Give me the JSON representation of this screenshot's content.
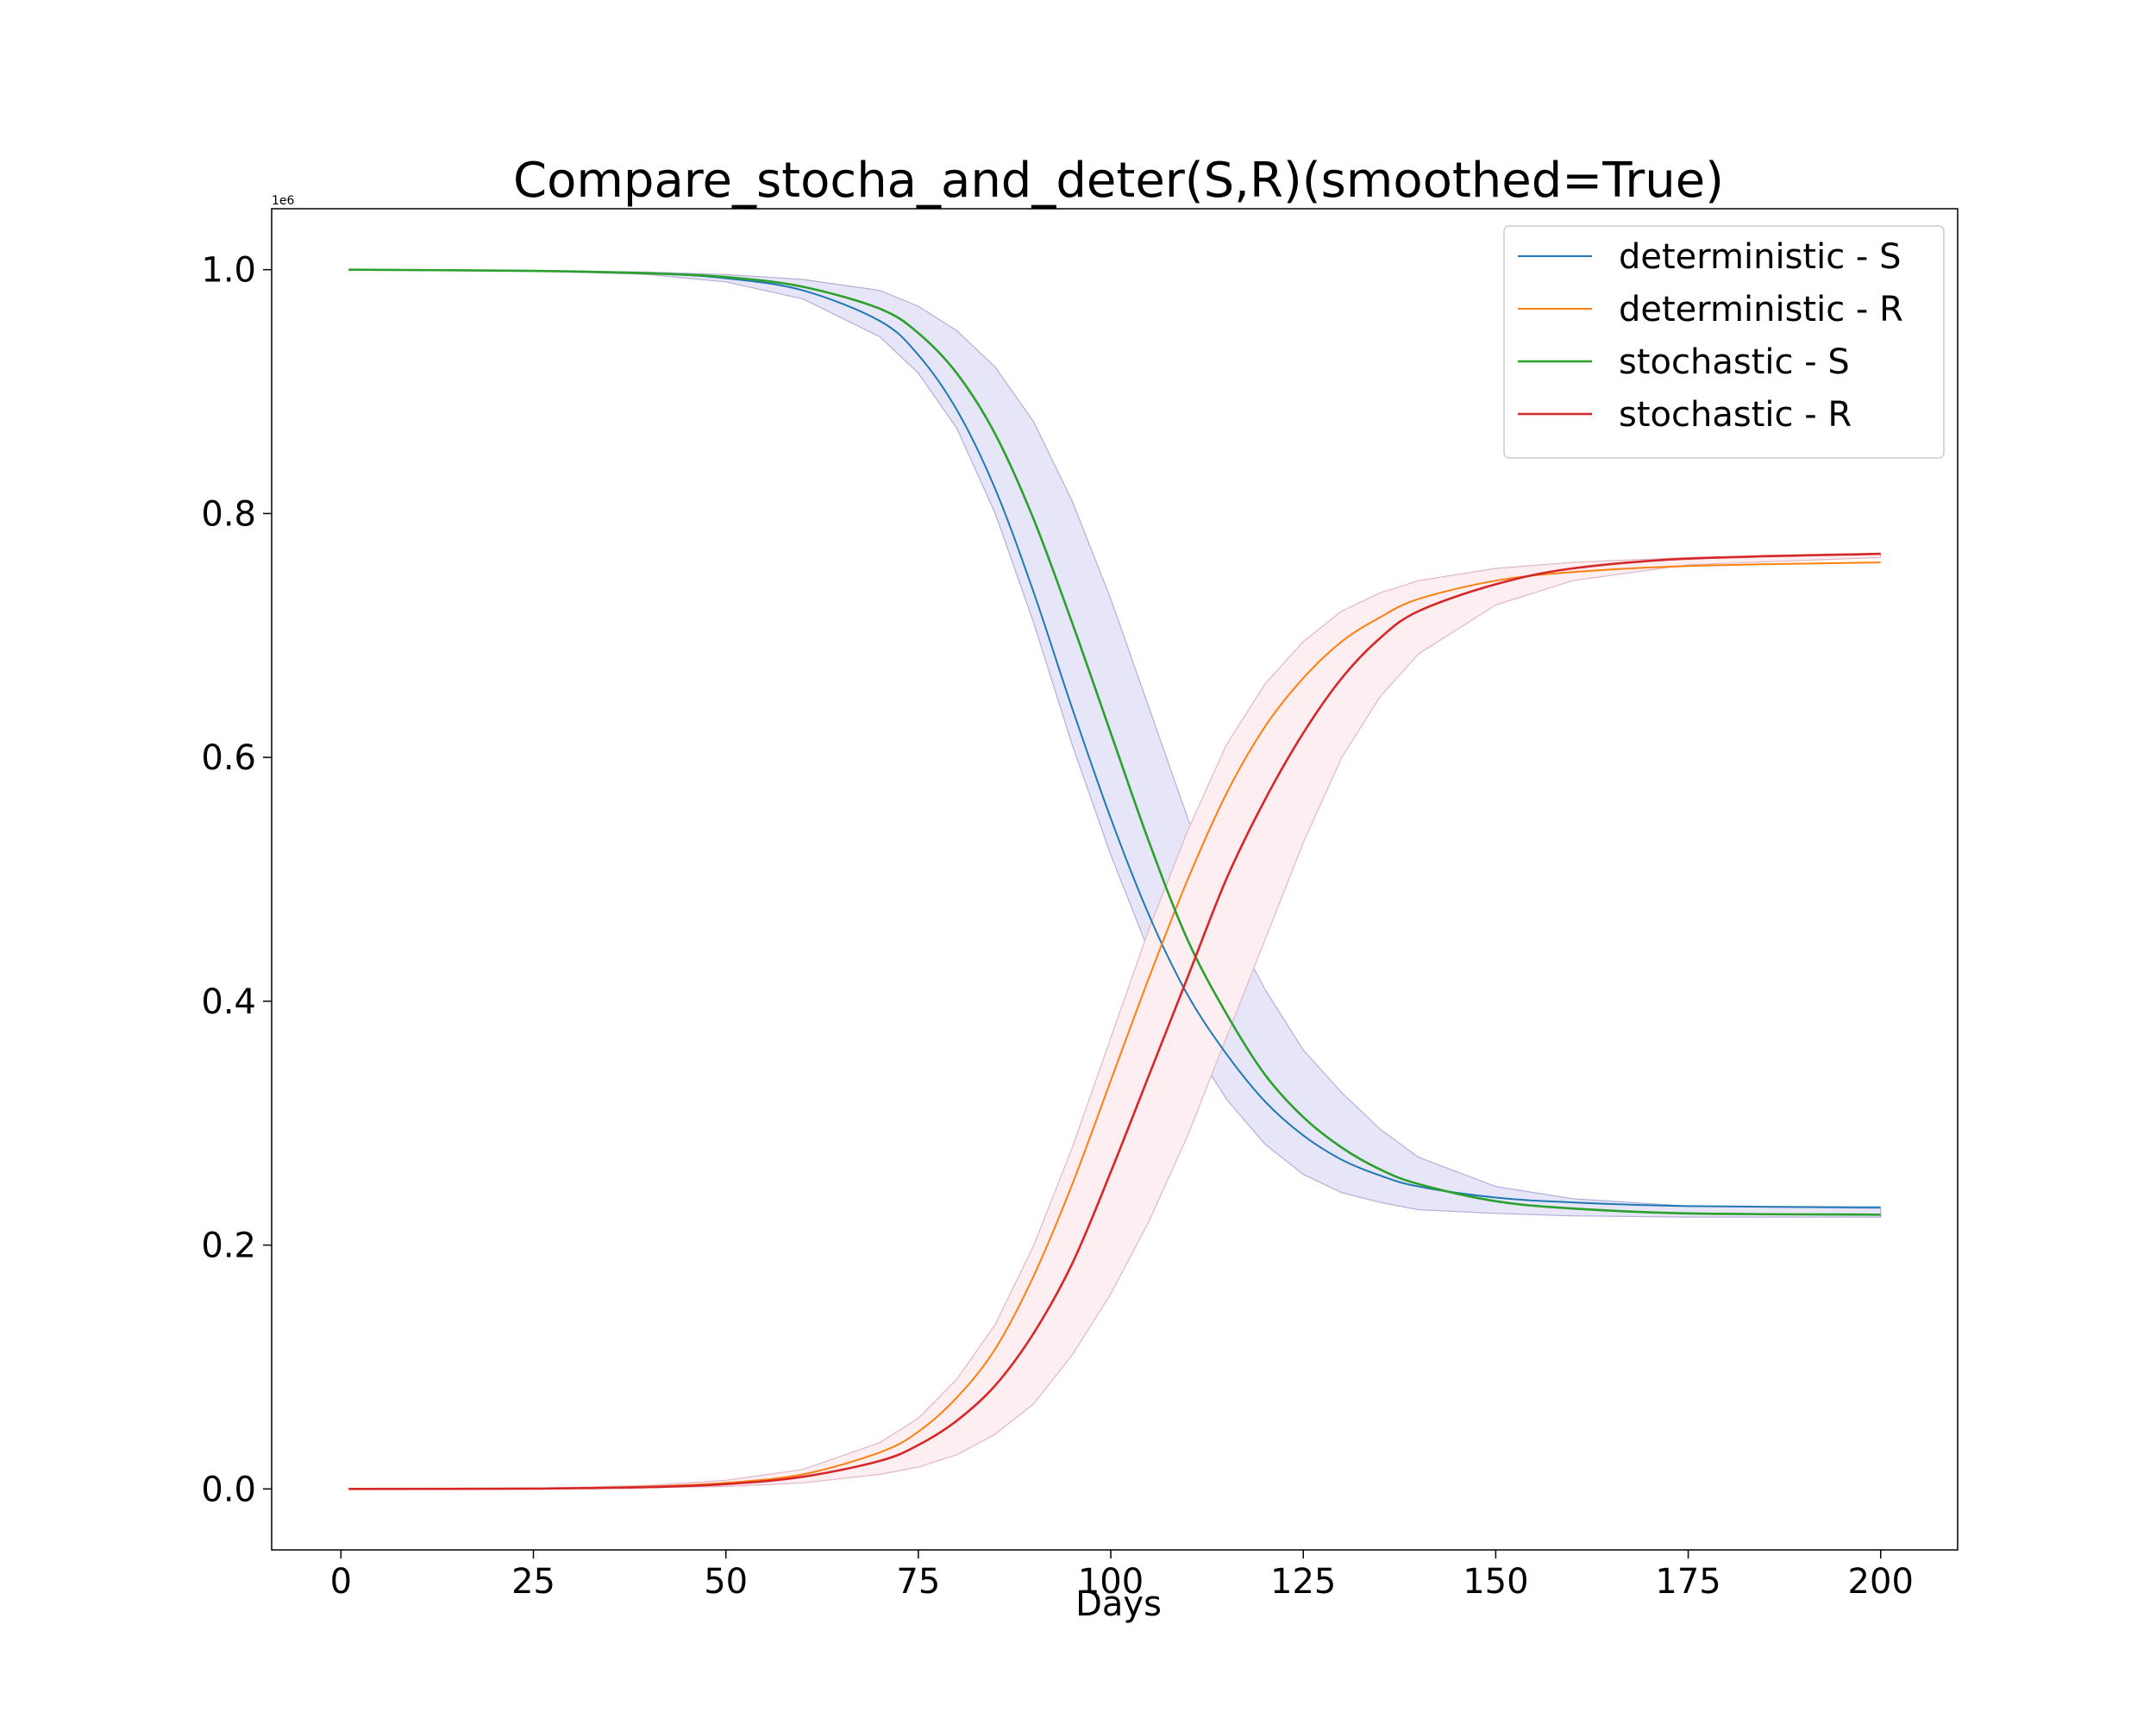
{
  "chart_data": {
    "type": "line",
    "title": "Compare_stocha_and_deter(S,R)(smoothed=True)",
    "xlabel": "Days",
    "ylabel": "",
    "y_offset_label": "1e6",
    "xlim": [
      -9,
      210
    ],
    "ylim": [
      -0.05,
      1.05
    ],
    "x_ticks": [
      0,
      25,
      50,
      75,
      100,
      125,
      150,
      175,
      200
    ],
    "x_tick_labels": [
      "0",
      "25",
      "50",
      "75",
      "100",
      "125",
      "150",
      "175",
      "200"
    ],
    "y_ticks": [
      0.0,
      0.2,
      0.4,
      0.6,
      0.8,
      1.0
    ],
    "y_tick_labels": [
      "0.0",
      "0.2",
      "0.4",
      "0.6",
      "0.8",
      "1.0"
    ],
    "grid": false,
    "legend_position": "top-right",
    "series": [
      {
        "name": "deterministic - S",
        "color": "#1f77b4",
        "x": [
          1,
          25,
          40,
          50,
          60,
          70,
          75,
          80,
          85,
          90,
          95,
          100,
          105,
          110,
          115,
          120,
          125,
          130,
          135,
          140,
          150,
          160,
          175,
          200
        ],
        "y": [
          1.0,
          0.999,
          0.997,
          0.993,
          0.983,
          0.958,
          0.93,
          0.885,
          0.82,
          0.735,
          0.64,
          0.55,
          0.47,
          0.405,
          0.357,
          0.318,
          0.29,
          0.27,
          0.257,
          0.248,
          0.239,
          0.235,
          0.232,
          0.231
        ]
      },
      {
        "name": "deterministic - R",
        "color": "#ff7f0e",
        "x": [
          1,
          25,
          40,
          50,
          60,
          70,
          75,
          80,
          85,
          90,
          95,
          100,
          105,
          110,
          115,
          120,
          125,
          130,
          135,
          140,
          150,
          160,
          175,
          200
        ],
        "y": [
          0.0,
          0.0003,
          0.002,
          0.005,
          0.012,
          0.03,
          0.047,
          0.075,
          0.115,
          0.175,
          0.25,
          0.335,
          0.42,
          0.5,
          0.57,
          0.625,
          0.665,
          0.695,
          0.715,
          0.73,
          0.745,
          0.752,
          0.757,
          0.76
        ]
      },
      {
        "name": "stochastic - S",
        "color": "#2ca02c",
        "x": [
          1,
          25,
          40,
          50,
          60,
          70,
          75,
          80,
          85,
          90,
          95,
          100,
          105,
          110,
          115,
          120,
          125,
          130,
          135,
          140,
          150,
          160,
          175,
          200
        ],
        "y": [
          1.0,
          0.999,
          0.997,
          0.994,
          0.986,
          0.968,
          0.948,
          0.915,
          0.865,
          0.795,
          0.71,
          0.62,
          0.53,
          0.45,
          0.39,
          0.34,
          0.305,
          0.28,
          0.262,
          0.25,
          0.236,
          0.23,
          0.226,
          0.225
        ]
      },
      {
        "name": "stochastic - R",
        "color": "#d62728",
        "x": [
          1,
          25,
          40,
          50,
          60,
          70,
          75,
          80,
          85,
          90,
          95,
          100,
          105,
          110,
          115,
          120,
          125,
          130,
          135,
          140,
          150,
          160,
          175,
          200
        ],
        "y": [
          0.0,
          0.0003,
          0.0015,
          0.004,
          0.01,
          0.023,
          0.036,
          0.056,
          0.085,
          0.128,
          0.185,
          0.26,
          0.34,
          0.42,
          0.5,
          0.565,
          0.62,
          0.665,
          0.698,
          0.72,
          0.742,
          0.755,
          0.763,
          0.767
        ]
      }
    ],
    "bands": [
      {
        "fill": "#e6e6f8",
        "stroke": "#b0b0d8",
        "x": [
          1,
          25,
          40,
          50,
          60,
          70,
          75,
          80,
          85,
          90,
          95,
          100,
          105,
          110,
          115,
          120,
          125,
          130,
          135,
          140,
          150,
          160,
          175,
          200
        ],
        "upper": [
          1.0,
          0.999,
          0.998,
          0.996,
          0.992,
          0.983,
          0.97,
          0.95,
          0.92,
          0.875,
          0.81,
          0.73,
          0.64,
          0.55,
          0.47,
          0.41,
          0.36,
          0.325,
          0.295,
          0.272,
          0.248,
          0.238,
          0.232,
          0.23
        ],
        "lower": [
          1.0,
          0.999,
          0.996,
          0.99,
          0.976,
          0.945,
          0.915,
          0.87,
          0.8,
          0.71,
          0.61,
          0.52,
          0.44,
          0.37,
          0.32,
          0.283,
          0.258,
          0.243,
          0.235,
          0.229,
          0.226,
          0.224,
          0.223,
          0.223
        ]
      },
      {
        "fill": "#fdeef2",
        "stroke": "#e0b8c4",
        "x": [
          1,
          25,
          40,
          50,
          60,
          70,
          75,
          80,
          85,
          90,
          95,
          100,
          105,
          110,
          115,
          120,
          125,
          130,
          135,
          140,
          150,
          160,
          175,
          200
        ],
        "upper": [
          0.0,
          0.0004,
          0.003,
          0.007,
          0.016,
          0.038,
          0.058,
          0.09,
          0.135,
          0.2,
          0.28,
          0.37,
          0.46,
          0.54,
          0.61,
          0.66,
          0.695,
          0.72,
          0.735,
          0.745,
          0.755,
          0.76,
          0.764,
          0.767
        ],
        "lower": [
          0.0,
          0.0002,
          0.001,
          0.002,
          0.005,
          0.012,
          0.018,
          0.028,
          0.045,
          0.07,
          0.11,
          0.16,
          0.22,
          0.29,
          0.37,
          0.45,
          0.53,
          0.6,
          0.65,
          0.685,
          0.725,
          0.745,
          0.758,
          0.764
        ]
      }
    ]
  }
}
